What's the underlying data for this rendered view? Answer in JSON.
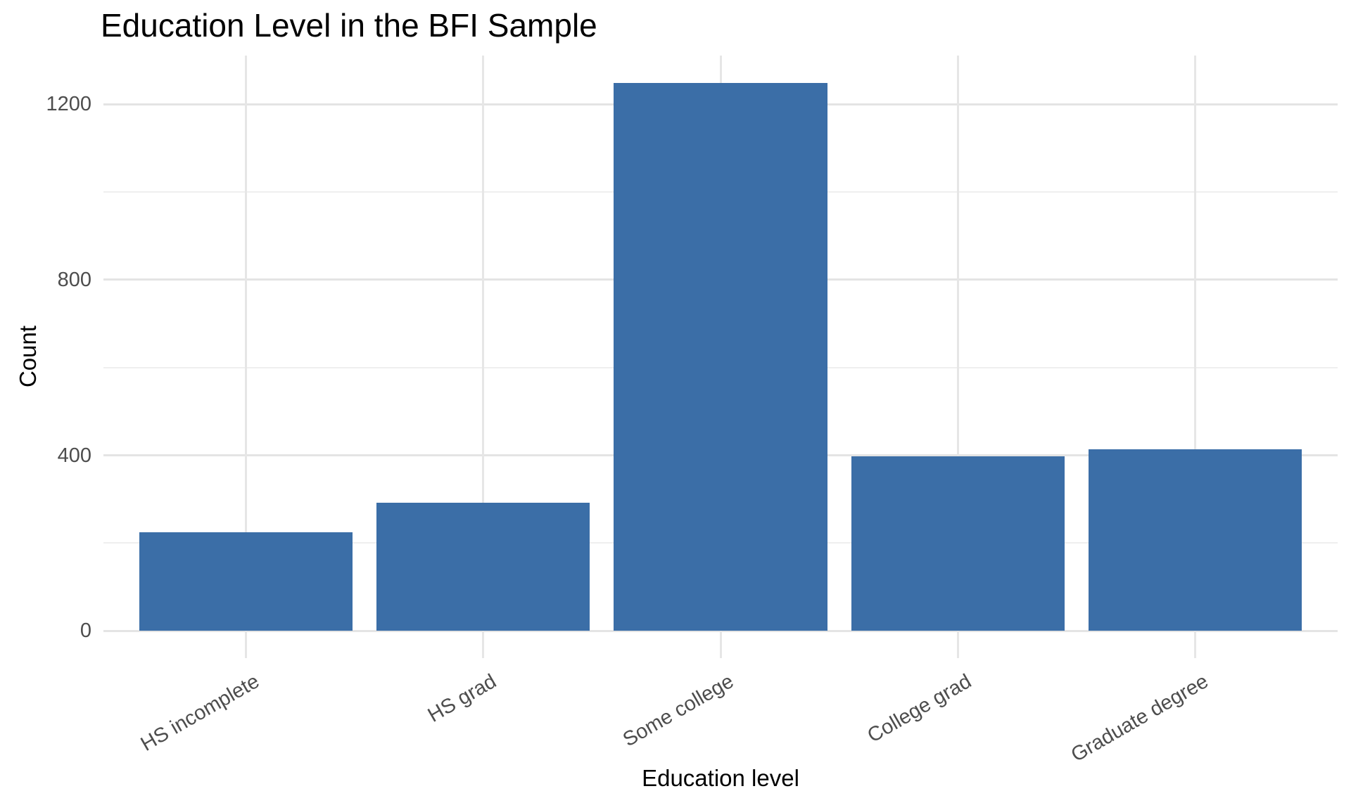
{
  "chart_data": {
    "type": "bar",
    "title": "Education Level in the BFI Sample",
    "xlabel": "Education level",
    "ylabel": "Count",
    "categories": [
      "HS incomplete",
      "HS grad",
      "Some college",
      "College grad",
      "Graduate degree"
    ],
    "values": [
      224,
      292,
      1249,
      398,
      414
    ],
    "y_major_ticks": [
      0,
      400,
      800,
      1200
    ],
    "y_tick_labels": [
      "0",
      "400",
      "800",
      "1200"
    ],
    "y_minor_gridlines": [
      200,
      600,
      1000
    ],
    "ylim": [
      -62,
      1311
    ],
    "x_tick_angle_deg": 30,
    "grid": "on",
    "legend": "none",
    "colors": {
      "bar_fill": "#3b6ea7",
      "grid_major": "#e4e4e4",
      "grid_minor": "#efefef",
      "tick_label": "#4d4d4d",
      "title_text": "#000000",
      "background": "#ffffff"
    }
  }
}
